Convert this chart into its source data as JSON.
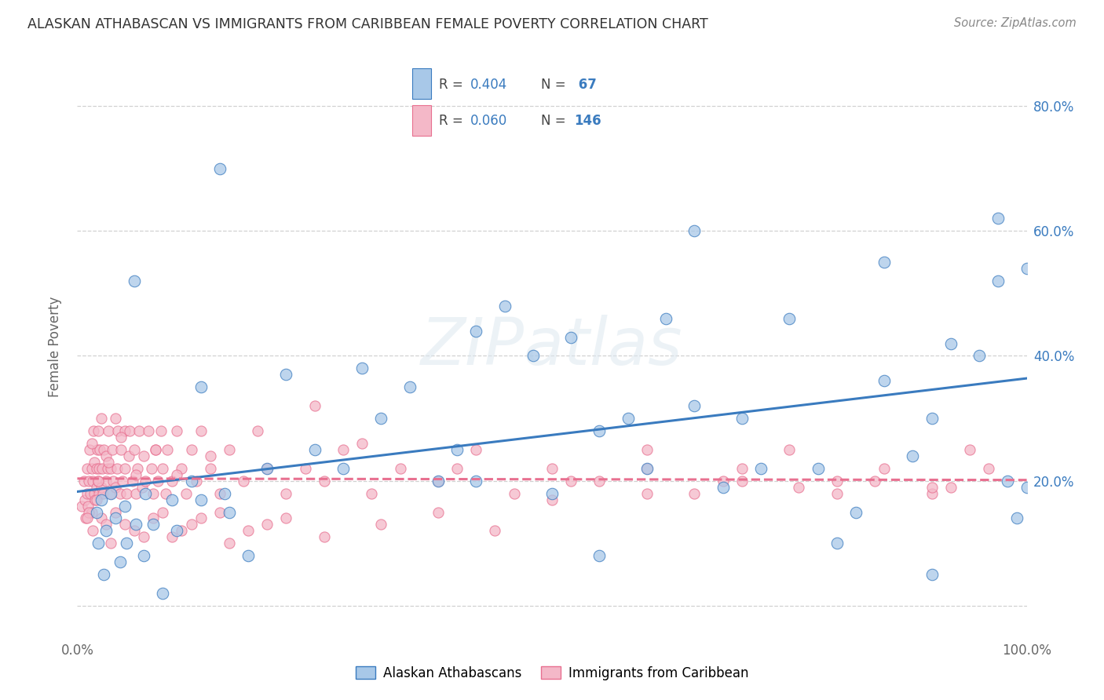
{
  "title": "ALASKAN ATHABASCAN VS IMMIGRANTS FROM CARIBBEAN FEMALE POVERTY CORRELATION CHART",
  "source": "Source: ZipAtlas.com",
  "ylabel": "Female Poverty",
  "ytick_values": [
    0.0,
    0.2,
    0.4,
    0.6,
    0.8
  ],
  "ytick_labels": [
    "",
    "20.0%",
    "40.0%",
    "60.0%",
    "80.0%"
  ],
  "xlim": [
    0.0,
    1.0
  ],
  "ylim": [
    -0.05,
    0.88
  ],
  "legend_label1": "Alaskan Athabascans",
  "legend_label2": "Immigrants from Caribbean",
  "color_blue": "#a8c8e8",
  "color_pink": "#f4b8c8",
  "color_blue_line": "#3a7bbf",
  "color_pink_line": "#e87090",
  "color_legend_r": "#555555",
  "color_legend_n_val": "#3a7bbf",
  "color_ytick": "#3a7bbf",
  "background_color": "#ffffff",
  "grid_color": "#cccccc",
  "title_color": "#333333",
  "blue_x": [
    0.02,
    0.022,
    0.025,
    0.028,
    0.03,
    0.035,
    0.04,
    0.045,
    0.05,
    0.052,
    0.06,
    0.062,
    0.07,
    0.072,
    0.08,
    0.09,
    0.1,
    0.105,
    0.12,
    0.13,
    0.15,
    0.155,
    0.16,
    0.18,
    0.2,
    0.22,
    0.25,
    0.28,
    0.3,
    0.32,
    0.35,
    0.38,
    0.4,
    0.42,
    0.45,
    0.48,
    0.5,
    0.52,
    0.55,
    0.58,
    0.6,
    0.62,
    0.65,
    0.68,
    0.7,
    0.72,
    0.75,
    0.78,
    0.8,
    0.82,
    0.85,
    0.88,
    0.9,
    0.92,
    0.95,
    0.97,
    0.98,
    0.99,
    1.0,
    1.0,
    0.13,
    0.42,
    0.55,
    0.65,
    0.85,
    0.9,
    0.97
  ],
  "blue_y": [
    0.15,
    0.1,
    0.17,
    0.05,
    0.12,
    0.18,
    0.14,
    0.07,
    0.16,
    0.1,
    0.52,
    0.13,
    0.08,
    0.18,
    0.13,
    0.02,
    0.17,
    0.12,
    0.2,
    0.17,
    0.7,
    0.18,
    0.15,
    0.08,
    0.22,
    0.37,
    0.25,
    0.22,
    0.38,
    0.3,
    0.35,
    0.2,
    0.25,
    0.44,
    0.48,
    0.4,
    0.18,
    0.43,
    0.28,
    0.3,
    0.22,
    0.46,
    0.32,
    0.19,
    0.3,
    0.22,
    0.46,
    0.22,
    0.1,
    0.15,
    0.55,
    0.24,
    0.3,
    0.42,
    0.4,
    0.62,
    0.2,
    0.14,
    0.54,
    0.19,
    0.35,
    0.2,
    0.08,
    0.6,
    0.36,
    0.05,
    0.52
  ],
  "pink_x": [
    0.005,
    0.007,
    0.008,
    0.009,
    0.01,
    0.01,
    0.011,
    0.012,
    0.013,
    0.014,
    0.015,
    0.015,
    0.016,
    0.017,
    0.018,
    0.018,
    0.019,
    0.02,
    0.02,
    0.021,
    0.022,
    0.022,
    0.023,
    0.023,
    0.024,
    0.025,
    0.025,
    0.026,
    0.027,
    0.028,
    0.03,
    0.03,
    0.032,
    0.033,
    0.035,
    0.035,
    0.037,
    0.038,
    0.04,
    0.04,
    0.042,
    0.043,
    0.045,
    0.046,
    0.048,
    0.05,
    0.05,
    0.052,
    0.054,
    0.055,
    0.058,
    0.06,
    0.062,
    0.063,
    0.065,
    0.068,
    0.07,
    0.072,
    0.075,
    0.078,
    0.08,
    0.082,
    0.085,
    0.088,
    0.09,
    0.093,
    0.095,
    0.1,
    0.105,
    0.11,
    0.115,
    0.12,
    0.125,
    0.13,
    0.14,
    0.15,
    0.16,
    0.175,
    0.19,
    0.2,
    0.22,
    0.24,
    0.26,
    0.28,
    0.31,
    0.34,
    0.38,
    0.42,
    0.46,
    0.5,
    0.55,
    0.6,
    0.65,
    0.7,
    0.75,
    0.8,
    0.85,
    0.9,
    0.94,
    0.012,
    0.016,
    0.025,
    0.035,
    0.05,
    0.07,
    0.09,
    0.11,
    0.13,
    0.16,
    0.2,
    0.25,
    0.3,
    0.4,
    0.5,
    0.6,
    0.7,
    0.8,
    0.9,
    0.01,
    0.02,
    0.03,
    0.04,
    0.06,
    0.08,
    0.1,
    0.12,
    0.15,
    0.18,
    0.22,
    0.26,
    0.32,
    0.38,
    0.44,
    0.52,
    0.6,
    0.68,
    0.76,
    0.84,
    0.92,
    0.96,
    0.015,
    0.022,
    0.033,
    0.046,
    0.062,
    0.082,
    0.105,
    0.14
  ],
  "pink_y": [
    0.16,
    0.2,
    0.17,
    0.14,
    0.18,
    0.22,
    0.16,
    0.2,
    0.25,
    0.18,
    0.22,
    0.15,
    0.2,
    0.28,
    0.18,
    0.23,
    0.17,
    0.22,
    0.19,
    0.25,
    0.2,
    0.28,
    0.22,
    0.18,
    0.25,
    0.19,
    0.3,
    0.22,
    0.18,
    0.25,
    0.24,
    0.2,
    0.22,
    0.28,
    0.18,
    0.22,
    0.25,
    0.2,
    0.3,
    0.19,
    0.22,
    0.28,
    0.18,
    0.25,
    0.2,
    0.28,
    0.22,
    0.18,
    0.24,
    0.28,
    0.2,
    0.25,
    0.18,
    0.22,
    0.28,
    0.19,
    0.24,
    0.2,
    0.28,
    0.22,
    0.18,
    0.25,
    0.2,
    0.28,
    0.22,
    0.18,
    0.25,
    0.2,
    0.28,
    0.22,
    0.18,
    0.25,
    0.2,
    0.28,
    0.22,
    0.18,
    0.25,
    0.2,
    0.28,
    0.22,
    0.18,
    0.22,
    0.2,
    0.25,
    0.18,
    0.22,
    0.2,
    0.25,
    0.18,
    0.22,
    0.2,
    0.25,
    0.18,
    0.22,
    0.25,
    0.2,
    0.22,
    0.18,
    0.25,
    0.15,
    0.12,
    0.14,
    0.1,
    0.13,
    0.11,
    0.15,
    0.12,
    0.14,
    0.1,
    0.13,
    0.32,
    0.26,
    0.22,
    0.17,
    0.22,
    0.2,
    0.18,
    0.19,
    0.14,
    0.17,
    0.13,
    0.15,
    0.12,
    0.14,
    0.11,
    0.13,
    0.15,
    0.12,
    0.14,
    0.11,
    0.13,
    0.15,
    0.12,
    0.2,
    0.18,
    0.2,
    0.19,
    0.2,
    0.19,
    0.22,
    0.26,
    0.2,
    0.23,
    0.27,
    0.21,
    0.25,
    0.21,
    0.24
  ]
}
